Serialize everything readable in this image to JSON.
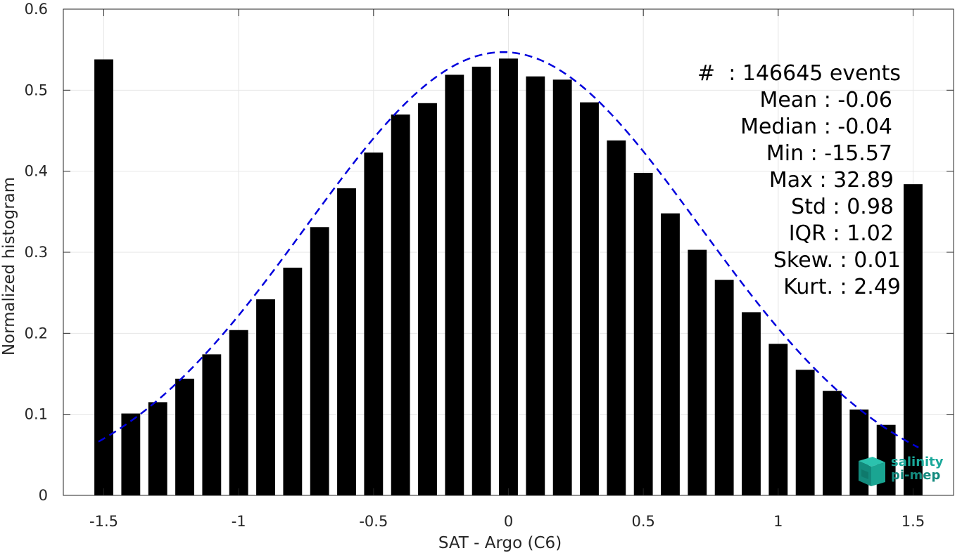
{
  "chart_data": {
    "type": "bar",
    "xlabel": "SAT - Argo (C6)",
    "ylabel": "Normalized histogram",
    "xlim": [
      -1.65,
      1.65
    ],
    "ylim": [
      0,
      0.6
    ],
    "xticks": [
      -1.5,
      -1,
      -0.5,
      0,
      0.5,
      1,
      1.5
    ],
    "xtick_labels": [
      "-1.5",
      "-1",
      "-0.5",
      "0",
      "0.5",
      "1",
      "1.5"
    ],
    "yticks": [
      0,
      0.1,
      0.2,
      0.3,
      0.4,
      0.5,
      0.6
    ],
    "ytick_labels": [
      "0",
      "0.1",
      "0.2",
      "0.3",
      "0.4",
      "0.5",
      "0.6"
    ],
    "grid": true,
    "bar_color": "#000000",
    "bar_width": 0.07,
    "x": [
      -1.5,
      -1.4,
      -1.3,
      -1.2,
      -1.1,
      -1.0,
      -0.9,
      -0.8,
      -0.7,
      -0.6,
      -0.5,
      -0.4,
      -0.3,
      -0.2,
      -0.1,
      0.0,
      0.1,
      0.2,
      0.3,
      0.4,
      0.5,
      0.6,
      0.7,
      0.8,
      0.9,
      1.0,
      1.1,
      1.2,
      1.3,
      1.4,
      1.5
    ],
    "values": [
      0.538,
      0.101,
      0.115,
      0.144,
      0.174,
      0.204,
      0.242,
      0.281,
      0.331,
      0.379,
      0.423,
      0.47,
      0.484,
      0.519,
      0.529,
      0.539,
      0.517,
      0.513,
      0.485,
      0.438,
      0.398,
      0.348,
      0.303,
      0.266,
      0.226,
      0.187,
      0.155,
      0.129,
      0.106,
      0.087,
      0.384
    ],
    "fit_curve": {
      "type": "gaussian",
      "style": "dashed",
      "color": "#0000dd",
      "mean": -0.02,
      "std": 0.73,
      "peak": 0.547,
      "x_range": [
        -1.52,
        1.52
      ]
    },
    "stats": [
      "#  : 146645 events",
      "Mean : -0.06",
      "Median : -0.04",
      "Min : -15.57",
      "Max : 32.89",
      "Std : 0.98",
      "IQR : 1.02",
      "Skew. : 0.01",
      "Kurt. : 2.49"
    ]
  },
  "logo": {
    "line1": "salinity",
    "line2": "pi-mep",
    "color": "#1aa89a"
  }
}
